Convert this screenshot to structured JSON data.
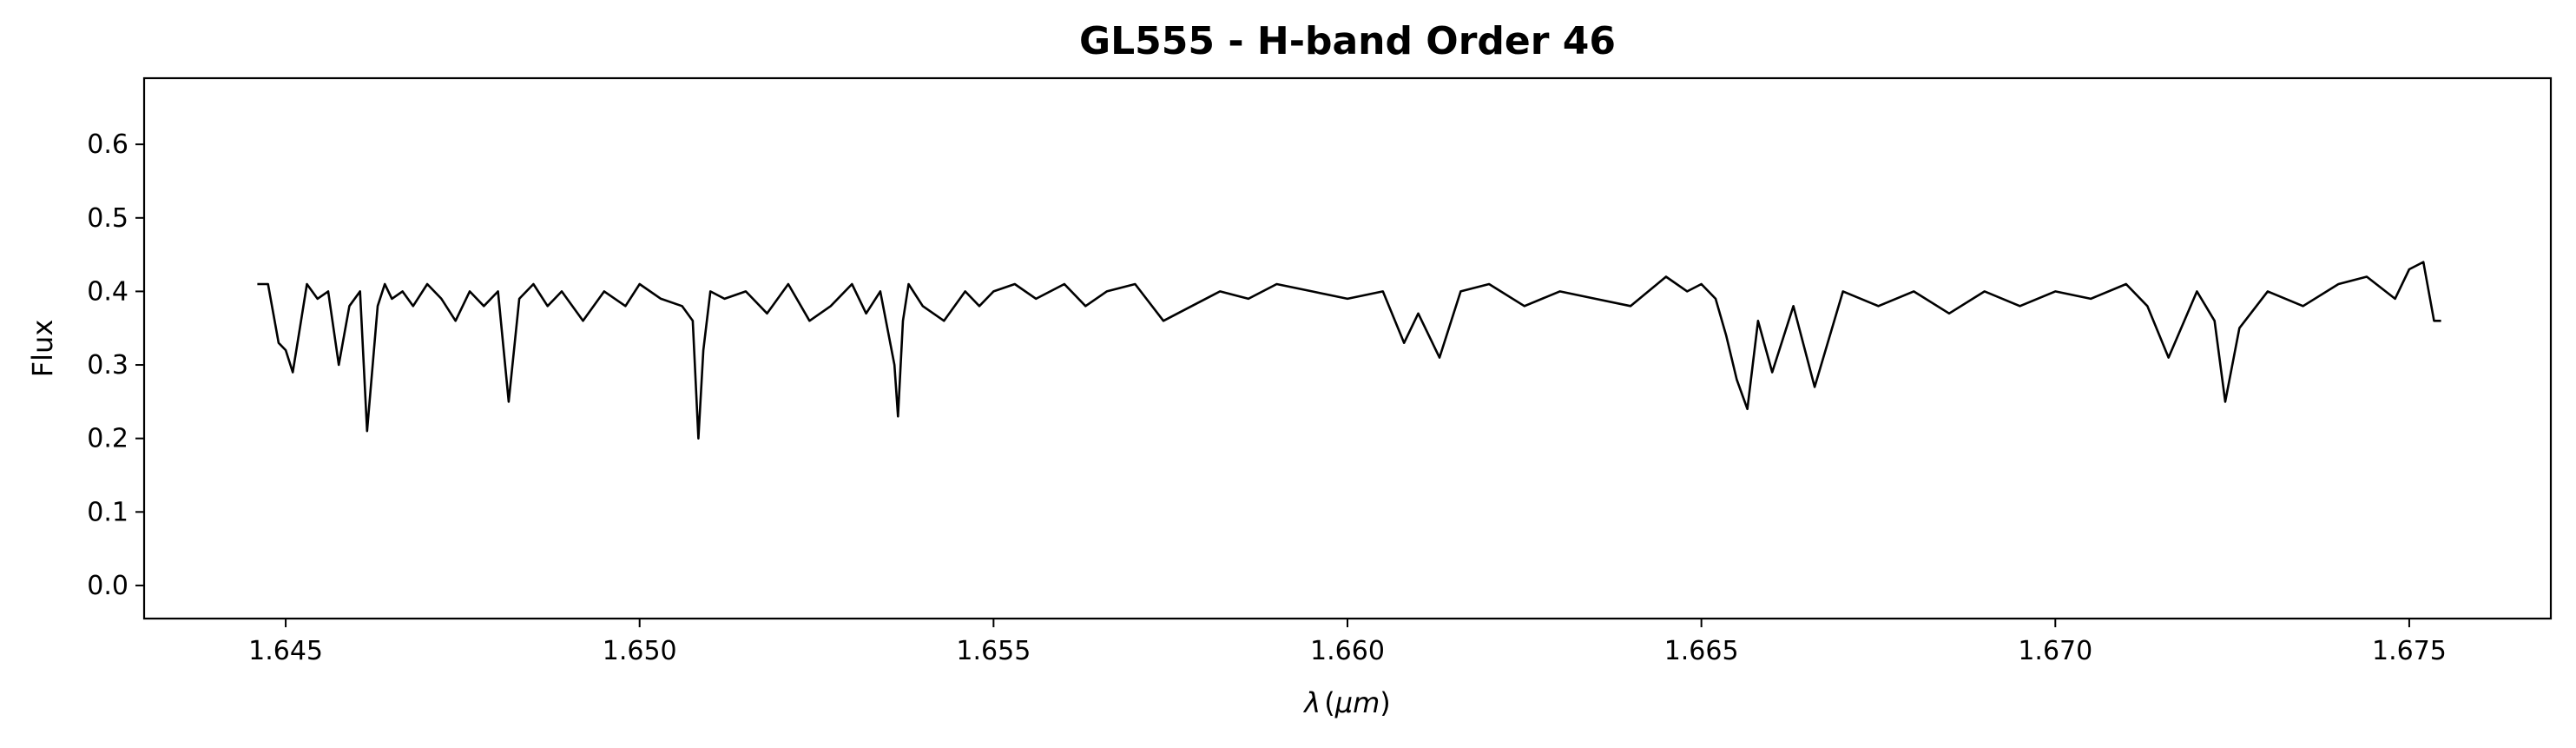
{
  "chart_data": {
    "type": "line",
    "title": "GL555 - H-band Order 46",
    "xlabel_symbol": "λ",
    "xlabel_unit": "μm",
    "ylabel": "Flux",
    "xlim": [
      1.643,
      1.677
    ],
    "ylim": [
      -0.045,
      0.69
    ],
    "xticks": [
      1.645,
      1.65,
      1.655,
      1.66,
      1.665,
      1.67,
      1.675
    ],
    "xtick_labels": [
      "1.645",
      "1.650",
      "1.655",
      "1.660",
      "1.665",
      "1.670",
      "1.675"
    ],
    "yticks": [
      0.0,
      0.1,
      0.2,
      0.3,
      0.4,
      0.5,
      0.6
    ],
    "ytick_labels": [
      "0.0",
      "0.1",
      "0.2",
      "0.3",
      "0.4",
      "0.5",
      "0.6"
    ],
    "grid": false,
    "line_color": "#000000",
    "series": [
      {
        "x": [
          1.6446,
          1.64475,
          1.6449,
          1.645,
          1.6451,
          1.6452,
          1.6453,
          1.64545,
          1.6456,
          1.64575,
          1.6459,
          1.64605,
          1.64615,
          1.6463,
          1.6464,
          1.6465,
          1.64665,
          1.6468,
          1.647,
          1.6472,
          1.6474,
          1.6476,
          1.6478,
          1.648,
          1.64815,
          1.6483,
          1.6485,
          1.6487,
          1.6489,
          1.6492,
          1.6495,
          1.6498,
          1.65,
          1.6503,
          1.6506,
          1.65075,
          1.65083,
          1.6509,
          1.651,
          1.6512,
          1.6515,
          1.6518,
          1.6521,
          1.6524,
          1.6527,
          1.653,
          1.6532,
          1.6534,
          1.6536,
          1.65365,
          1.65372,
          1.6538,
          1.654,
          1.6543,
          1.6546,
          1.6548,
          1.655,
          1.6553,
          1.6556,
          1.656,
          1.6563,
          1.6566,
          1.657,
          1.6574,
          1.6578,
          1.6582,
          1.6586,
          1.659,
          1.6595,
          1.66,
          1.6605,
          1.6608,
          1.661,
          1.6613,
          1.6616,
          1.662,
          1.6625,
          1.663,
          1.6635,
          1.664,
          1.6645,
          1.6648,
          1.665,
          1.6652,
          1.66535,
          1.6655,
          1.66565,
          1.6658,
          1.666,
          1.6663,
          1.6666,
          1.667,
          1.6675,
          1.668,
          1.6685,
          1.669,
          1.6695,
          1.67,
          1.6705,
          1.671,
          1.6713,
          1.6716,
          1.672,
          1.67225,
          1.6724,
          1.6726,
          1.673,
          1.6735,
          1.674,
          1.6744,
          1.6748,
          1.675,
          1.6752,
          1.67535,
          1.67545
        ],
        "y": [
          0.41,
          0.41,
          0.33,
          0.32,
          0.29,
          0.35,
          0.41,
          0.39,
          0.4,
          0.3,
          0.38,
          0.4,
          0.21,
          0.38,
          0.41,
          0.39,
          0.4,
          0.38,
          0.41,
          0.39,
          0.36,
          0.4,
          0.38,
          0.4,
          0.25,
          0.39,
          0.41,
          0.38,
          0.4,
          0.36,
          0.4,
          0.38,
          0.41,
          0.39,
          0.38,
          0.36,
          0.2,
          0.32,
          0.4,
          0.39,
          0.4,
          0.37,
          0.41,
          0.36,
          0.38,
          0.41,
          0.37,
          0.4,
          0.3,
          0.23,
          0.36,
          0.41,
          0.38,
          0.36,
          0.4,
          0.38,
          0.4,
          0.41,
          0.39,
          0.41,
          0.38,
          0.4,
          0.41,
          0.36,
          0.38,
          0.4,
          0.39,
          0.41,
          0.4,
          0.39,
          0.4,
          0.33,
          0.37,
          0.31,
          0.4,
          0.41,
          0.38,
          0.4,
          0.39,
          0.38,
          0.42,
          0.4,
          0.41,
          0.39,
          0.34,
          0.28,
          0.24,
          0.36,
          0.29,
          0.38,
          0.27,
          0.4,
          0.38,
          0.4,
          0.37,
          0.4,
          0.38,
          0.4,
          0.39,
          0.41,
          0.38,
          0.31,
          0.4,
          0.36,
          0.25,
          0.35,
          0.4,
          0.38,
          0.41,
          0.42,
          0.39,
          0.43,
          0.44,
          0.36,
          0.36
        ]
      }
    ]
  }
}
